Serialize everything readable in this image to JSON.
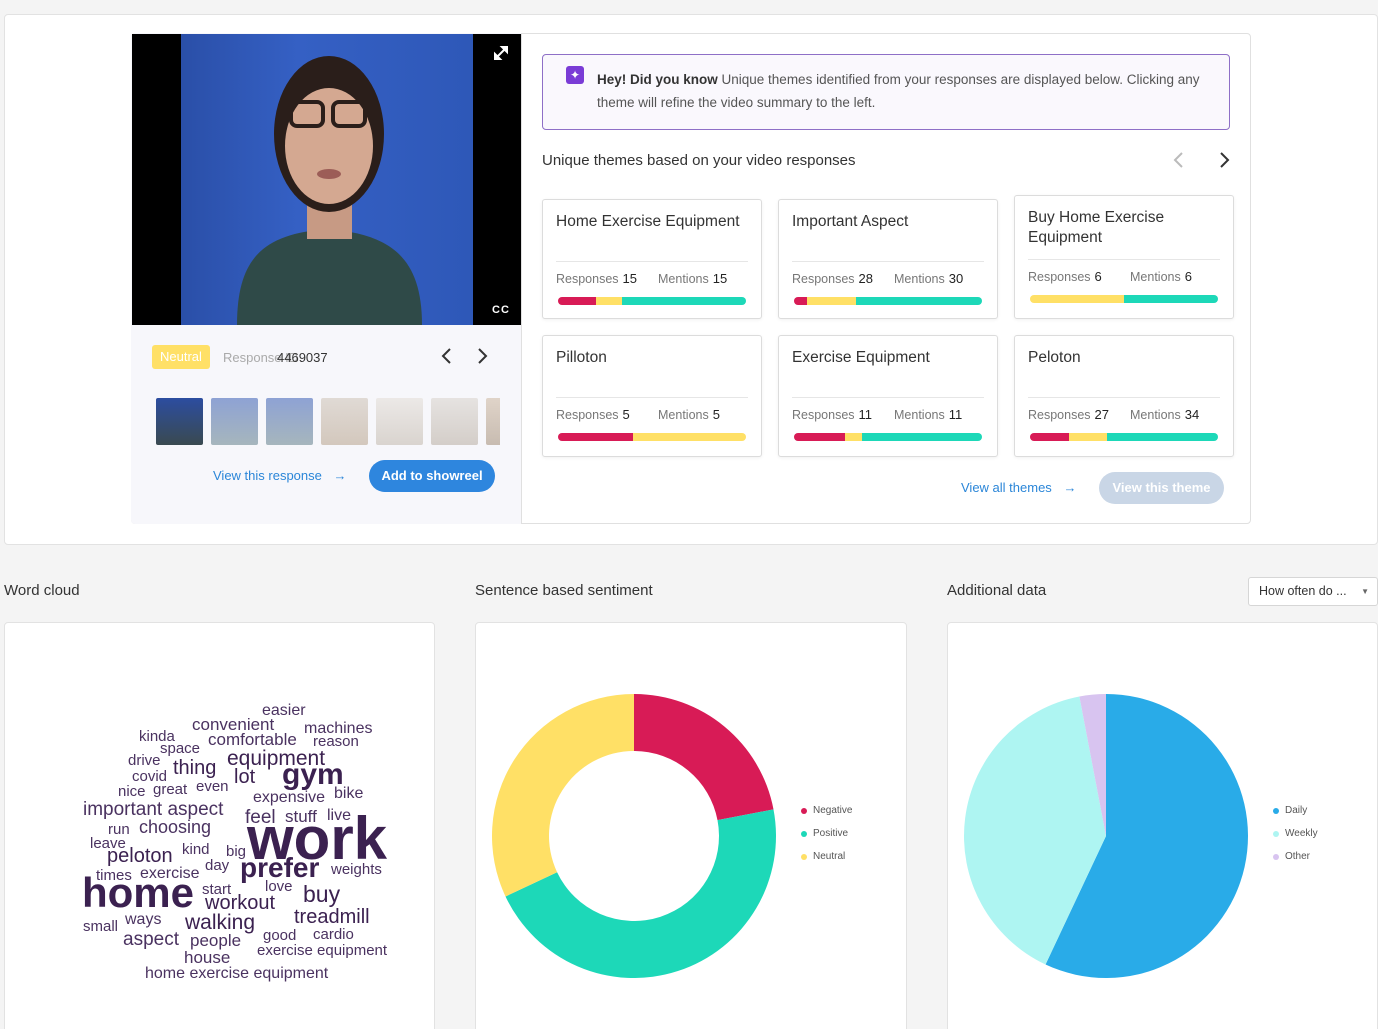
{
  "video_panel": {
    "sentiment_badge": "Neutral",
    "response_id_label": "Response ID",
    "response_id": "4469037",
    "cc_label": "CC",
    "view_response_label": "View this response",
    "add_showreel_label": "Add to showreel",
    "arrow_right": "→"
  },
  "tip": {
    "bold": "Hey! Did you know",
    "text": " Unique themes identified from your responses are displayed below. Clicking any theme will refine the video summary to the left."
  },
  "themes": {
    "heading": "Unique themes based on your video responses",
    "responses_label": "Responses",
    "mentions_label": "Mentions",
    "cards": [
      {
        "title": "Home Exercise Equipment",
        "responses": "15",
        "mentions": "15",
        "bar": [
          0.2,
          0.14,
          0.66
        ]
      },
      {
        "title": "Important Aspect",
        "responses": "28",
        "mentions": "30",
        "bar": [
          0.07,
          0.26,
          0.67
        ]
      },
      {
        "title": "Buy Home Exercise Equipment",
        "responses": "6",
        "mentions": "6",
        "bar": [
          0.0,
          0.5,
          0.5
        ]
      },
      {
        "title": "Pilloton",
        "responses": "5",
        "mentions": "5",
        "bar": [
          0.4,
          0.6,
          0.0
        ]
      },
      {
        "title": "Exercise Equipment",
        "responses": "11",
        "mentions": "11",
        "bar": [
          0.27,
          0.09,
          0.64
        ]
      },
      {
        "title": "Peloton",
        "responses": "27",
        "mentions": "34",
        "bar": [
          0.21,
          0.2,
          0.59
        ]
      }
    ],
    "view_all_label": "View all themes",
    "view_theme_label": "View this theme"
  },
  "sections": {
    "word_cloud": "Word cloud",
    "sentiment": "Sentence based sentiment",
    "additional": "Additional data",
    "select_value": "How often do ..."
  },
  "word_cloud_words": [
    "work",
    "home",
    "prefer",
    "gym",
    "equipment",
    "thing",
    "lot",
    "buy",
    "workout",
    "walking",
    "treadmill",
    "peloton",
    "choosing",
    "important aspect",
    "feel",
    "stuff",
    "live",
    "exercise",
    "aspect",
    "people",
    "house",
    "expensive",
    "bike",
    "comfortable",
    "reason",
    "convenient",
    "machines",
    "easier",
    "kinda",
    "space",
    "drive",
    "covid",
    "nice",
    "great",
    "even",
    "run",
    "leave",
    "kind",
    "big",
    "day",
    "times",
    "start",
    "love",
    "weights",
    "ways",
    "small",
    "good",
    "cardio",
    "exercise equipment",
    "home exercise equipment"
  ],
  "chart_data": [
    {
      "type": "pie",
      "variant": "donut",
      "title": "Sentence based sentiment",
      "labels": [
        "Negative",
        "Positive",
        "Neutral"
      ],
      "values": [
        22,
        46,
        32
      ],
      "colors": [
        "#d81b56",
        "#1dd8b8",
        "#ffe066"
      ],
      "legend": "right"
    },
    {
      "type": "pie",
      "title": "Additional data",
      "labels": [
        "Daily",
        "Weekly",
        "Other"
      ],
      "values": [
        57,
        40,
        3
      ],
      "colors": [
        "#29abe8",
        "#aef5f2",
        "#d8c4f0"
      ],
      "legend": "right"
    }
  ],
  "colors": {
    "accent": "#2e86de",
    "negative": "#d81b56",
    "neutral": "#ffe066",
    "positive": "#1dd8b8",
    "tip_border": "#8e6fc7"
  }
}
